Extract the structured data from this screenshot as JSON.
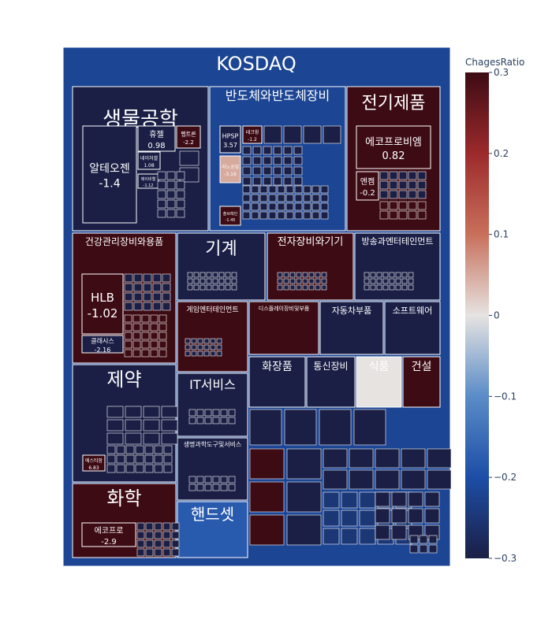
{
  "chart_data": {
    "type": "treemap",
    "title": "KOSDAQ",
    "colorbar": {
      "title": "ChagesRatio",
      "range": [
        -0.3,
        0.3
      ],
      "ticks": [
        "0.3",
        "0.2",
        "0.1",
        "0",
        "−0.1",
        "−0.2",
        "−0.3"
      ]
    },
    "colorscale": [
      "#1b1f45",
      "#1c4ea6",
      "#5a8cc8",
      "#e6e3e1",
      "#c8705b",
      "#9c2a2b",
      "#3d0b14"
    ],
    "sectors": [
      {
        "name": "생물공학",
        "value": -0.3,
        "children": [
          {
            "name": "알테오젠",
            "label": "-1.4",
            "value": -0.3
          },
          {
            "name": "휴젤",
            "label": "0.98",
            "value": -0.3
          },
          {
            "name": "펩트론",
            "label": "-2.2",
            "value": 0.3
          },
          {
            "name": "네이처셀",
            "label": "1.08",
            "value": -0.3
          },
          {
            "name": "에이비엘",
            "label": "-1.12",
            "value": -0.3
          }
        ]
      },
      {
        "name": "반도체와반도체장비",
        "value": -0.22,
        "children": [
          {
            "name": "HPSP",
            "label": "3.57",
            "value": -0.3
          },
          {
            "name": "테크윙",
            "label": "-1.2",
            "value": 0.3
          },
          {
            "name": "리노공업",
            "label": "-3.16",
            "value": 0.05
          },
          {
            "name": "솔브레인",
            "label": "-1.45",
            "value": 0.3
          }
        ]
      },
      {
        "name": "전기제품",
        "value": 0.3,
        "children": [
          {
            "name": "에코프로비엠",
            "label": "0.82",
            "value": 0.3
          },
          {
            "name": "엔켐",
            "label": "-0.2",
            "value": 0.3
          },
          {
            "name": "에코프로",
            "label": "-2.9",
            "value": 0.3
          }
        ]
      },
      {
        "name": "건강관리장비와용품",
        "value": 0.3,
        "children": [
          {
            "name": "HLB",
            "label": "-1.02",
            "value": 0.3
          },
          {
            "name": "클래시스",
            "label": "-2.16",
            "value": -0.3
          }
        ]
      },
      {
        "name": "기계",
        "value": -0.3
      },
      {
        "name": "전자장비와기기",
        "value": 0.3
      },
      {
        "name": "방송과엔터테인먼트",
        "value": -0.3
      },
      {
        "name": "게임엔터테인먼트",
        "value": 0.3
      },
      {
        "name": "디스플레이장비및부품",
        "value": 0.3
      },
      {
        "name": "자동차부품",
        "value": -0.3
      },
      {
        "name": "소프트웨어",
        "value": -0.3
      },
      {
        "name": "제약",
        "value": -0.3,
        "children": [
          {
            "name": "에스티팜",
            "label": "6.83",
            "value": 0.3
          }
        ]
      },
      {
        "name": "화장품",
        "value": -0.3
      },
      {
        "name": "통신장비",
        "value": -0.3
      },
      {
        "name": "식품",
        "value": 0.0
      },
      {
        "name": "건설",
        "value": 0.3
      },
      {
        "name": "IT서비스",
        "value": -0.3
      },
      {
        "name": "생명과학도구및서비스",
        "value": -0.3
      },
      {
        "name": "화학",
        "value": 0.3
      },
      {
        "name": "핸드셋",
        "value": -0.18
      }
    ]
  }
}
